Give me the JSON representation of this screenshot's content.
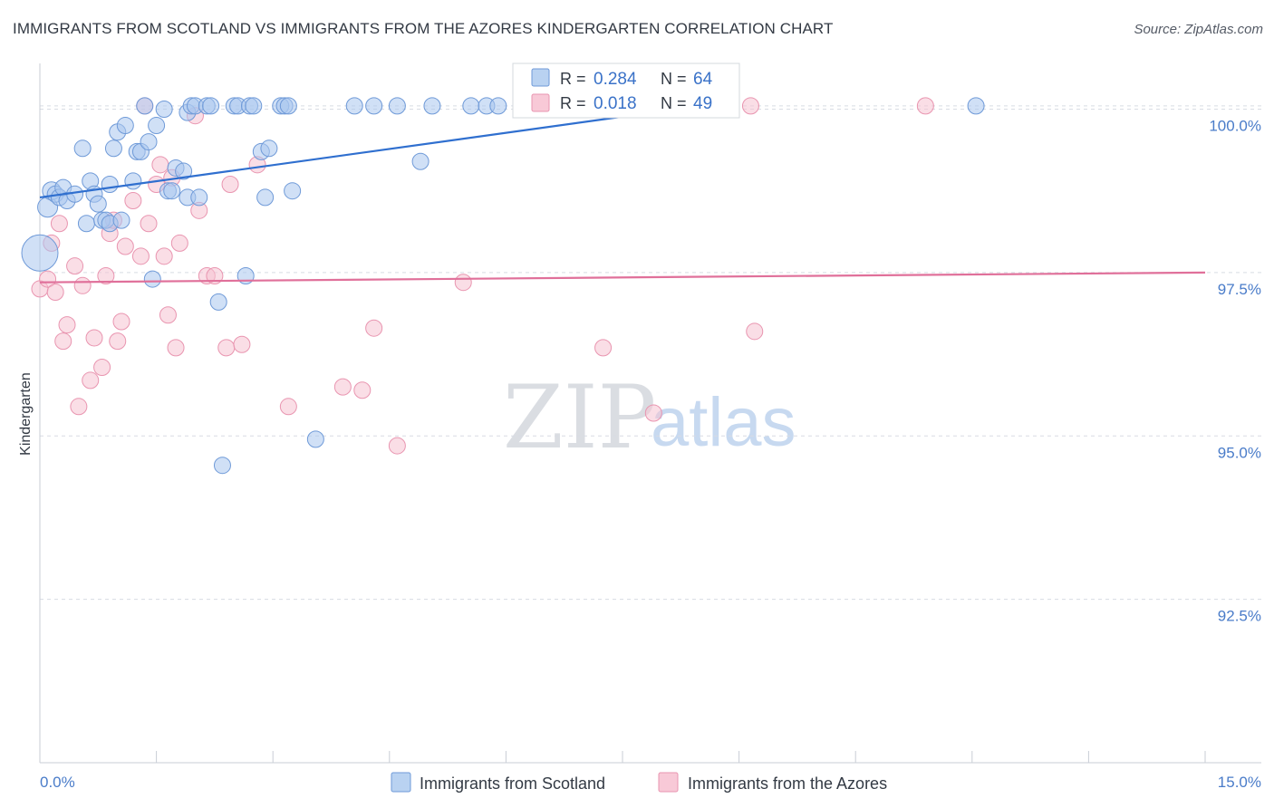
{
  "title": "IMMIGRANTS FROM SCOTLAND VS IMMIGRANTS FROM THE AZORES KINDERGARTEN CORRELATION CHART",
  "source": "Source: ZipAtlas.com",
  "colors": {
    "scotland_fill": "#a9c7ee",
    "scotland_stroke": "#6f9ad8",
    "scotland_line": "#2f6fcf",
    "azores_fill": "#f6c3d2",
    "azores_stroke": "#e995b0",
    "azores_line": "#e0709a",
    "tick_label": "#4a7cc9",
    "grid": "#d8dce3"
  },
  "chart_data": {
    "type": "scatter",
    "title": "IMMIGRANTS FROM SCOTLAND VS IMMIGRANTS FROM THE AZORES KINDERGARTEN CORRELATION CHART",
    "xlabel": "",
    "ylabel": "Kindergarten",
    "xlim": [
      0,
      15
    ],
    "ylim": [
      90.0,
      100.7
    ],
    "x_tick_labels": [
      "0.0%",
      "15.0%"
    ],
    "y_ticks": [
      100.0,
      97.5,
      95.0,
      92.5
    ],
    "y_tick_labels": [
      "100.0%",
      "97.5%",
      "95.0%",
      "92.5%"
    ],
    "legend": {
      "position": "top-center",
      "entries": [
        {
          "r_label": "R =",
          "r_value": "0.284",
          "n_label": "N =",
          "n_value": "64"
        },
        {
          "r_label": "R =",
          "r_value": "0.018",
          "n_label": "N =",
          "n_value": "49"
        }
      ]
    },
    "bottom_legend": [
      "Immigrants from Scotland",
      "Immigrants from the Azores"
    ],
    "watermark": {
      "zip": "ZIP",
      "atlas": "atlas"
    },
    "series": [
      {
        "name": "Immigrants from Scotland",
        "trend": {
          "x": [
            0.0,
            8.5
          ],
          "y": [
            98.65,
            100.05
          ]
        },
        "points": [
          [
            0.0,
            97.8,
            20
          ],
          [
            0.1,
            98.5,
            11
          ],
          [
            0.15,
            98.75,
            10
          ],
          [
            0.2,
            98.7,
            9
          ],
          [
            0.25,
            98.65,
            9
          ],
          [
            0.3,
            98.8,
            9
          ],
          [
            0.35,
            98.6,
            9
          ],
          [
            0.45,
            98.7,
            9
          ],
          [
            0.55,
            99.4,
            9
          ],
          [
            0.6,
            98.25,
            9
          ],
          [
            0.65,
            98.9,
            9
          ],
          [
            0.7,
            98.7,
            9
          ],
          [
            0.75,
            98.55,
            9
          ],
          [
            0.8,
            98.3,
            9
          ],
          [
            0.85,
            98.3,
            9
          ],
          [
            0.9,
            98.25,
            9
          ],
          [
            0.9,
            98.85,
            9
          ],
          [
            0.95,
            99.4,
            9
          ],
          [
            1.0,
            99.65,
            9
          ],
          [
            1.05,
            98.3,
            9
          ],
          [
            1.1,
            99.75,
            9
          ],
          [
            1.2,
            98.9,
            9
          ],
          [
            1.25,
            99.35,
            9
          ],
          [
            1.3,
            99.35,
            9
          ],
          [
            1.35,
            100.05,
            9
          ],
          [
            1.4,
            99.5,
            9
          ],
          [
            1.45,
            97.4,
            9
          ],
          [
            1.5,
            99.75,
            9
          ],
          [
            1.6,
            100.0,
            9
          ],
          [
            1.65,
            98.75,
            9
          ],
          [
            1.7,
            98.75,
            9
          ],
          [
            1.75,
            99.1,
            9
          ],
          [
            1.85,
            99.05,
            9
          ],
          [
            1.9,
            98.65,
            9
          ],
          [
            1.9,
            99.95,
            9
          ],
          [
            1.95,
            100.05,
            9
          ],
          [
            2.0,
            100.05,
            9
          ],
          [
            2.05,
            98.65,
            9
          ],
          [
            2.15,
            100.05,
            9
          ],
          [
            2.2,
            100.05,
            9
          ],
          [
            2.3,
            97.05,
            9
          ],
          [
            2.35,
            94.55,
            9
          ],
          [
            2.5,
            100.05,
            9
          ],
          [
            2.55,
            100.05,
            9
          ],
          [
            2.65,
            97.45,
            9
          ],
          [
            2.7,
            100.05,
            9
          ],
          [
            2.75,
            100.05,
            9
          ],
          [
            2.85,
            99.35,
            9
          ],
          [
            2.9,
            98.65,
            9
          ],
          [
            2.95,
            99.4,
            9
          ],
          [
            3.1,
            100.05,
            9
          ],
          [
            3.15,
            100.05,
            9
          ],
          [
            3.2,
            100.05,
            9
          ],
          [
            3.25,
            98.75,
            9
          ],
          [
            3.55,
            94.95,
            9
          ],
          [
            4.05,
            100.05,
            9
          ],
          [
            4.3,
            100.05,
            9
          ],
          [
            4.6,
            100.05,
            9
          ],
          [
            4.9,
            99.2,
            9
          ],
          [
            5.05,
            100.05,
            9
          ],
          [
            5.55,
            100.05,
            9
          ],
          [
            5.75,
            100.05,
            9
          ],
          [
            5.9,
            100.05,
            9
          ],
          [
            12.05,
            100.05,
            9
          ]
        ]
      },
      {
        "name": "Immigrants from the Azores",
        "trend": {
          "x": [
            0.0,
            15.0
          ],
          "y": [
            97.35,
            97.5
          ]
        },
        "points": [
          [
            0.0,
            97.25,
            9
          ],
          [
            0.1,
            97.4,
            9
          ],
          [
            0.15,
            97.95,
            9
          ],
          [
            0.2,
            97.2,
            9
          ],
          [
            0.25,
            98.25,
            9
          ],
          [
            0.3,
            96.45,
            9
          ],
          [
            0.35,
            96.7,
            9
          ],
          [
            0.45,
            97.6,
            9
          ],
          [
            0.5,
            95.45,
            9
          ],
          [
            0.55,
            97.3,
            9
          ],
          [
            0.65,
            95.85,
            9
          ],
          [
            0.7,
            96.5,
            9
          ],
          [
            0.8,
            96.05,
            9
          ],
          [
            0.85,
            97.45,
            9
          ],
          [
            0.9,
            98.1,
            9
          ],
          [
            0.95,
            98.3,
            9
          ],
          [
            1.0,
            96.45,
            9
          ],
          [
            1.05,
            96.75,
            9
          ],
          [
            1.1,
            97.9,
            9
          ],
          [
            1.2,
            98.6,
            9
          ],
          [
            1.3,
            97.75,
            9
          ],
          [
            1.35,
            100.05,
            9
          ],
          [
            1.4,
            98.25,
            9
          ],
          [
            1.5,
            98.85,
            9
          ],
          [
            1.55,
            99.15,
            9
          ],
          [
            1.6,
            97.75,
            9
          ],
          [
            1.65,
            96.85,
            9
          ],
          [
            1.7,
            98.95,
            9
          ],
          [
            1.75,
            96.35,
            9
          ],
          [
            1.8,
            97.95,
            9
          ],
          [
            2.05,
            98.45,
            9
          ],
          [
            2.15,
            97.45,
            9
          ],
          [
            2.25,
            97.45,
            9
          ],
          [
            2.4,
            96.35,
            9
          ],
          [
            2.45,
            98.85,
            9
          ],
          [
            2.6,
            96.4,
            9
          ],
          [
            2.8,
            99.15,
            9
          ],
          [
            3.2,
            95.45,
            9
          ],
          [
            3.9,
            95.75,
            9
          ],
          [
            4.15,
            95.7,
            9
          ],
          [
            4.3,
            96.65,
            9
          ],
          [
            4.6,
            94.85,
            9
          ],
          [
            5.45,
            97.35,
            9
          ],
          [
            7.25,
            96.35,
            9
          ],
          [
            7.9,
            95.35,
            9
          ],
          [
            9.15,
            100.05,
            9
          ],
          [
            9.2,
            96.6,
            9
          ],
          [
            11.4,
            100.05,
            9
          ],
          [
            2.0,
            99.9,
            9
          ]
        ]
      }
    ]
  }
}
